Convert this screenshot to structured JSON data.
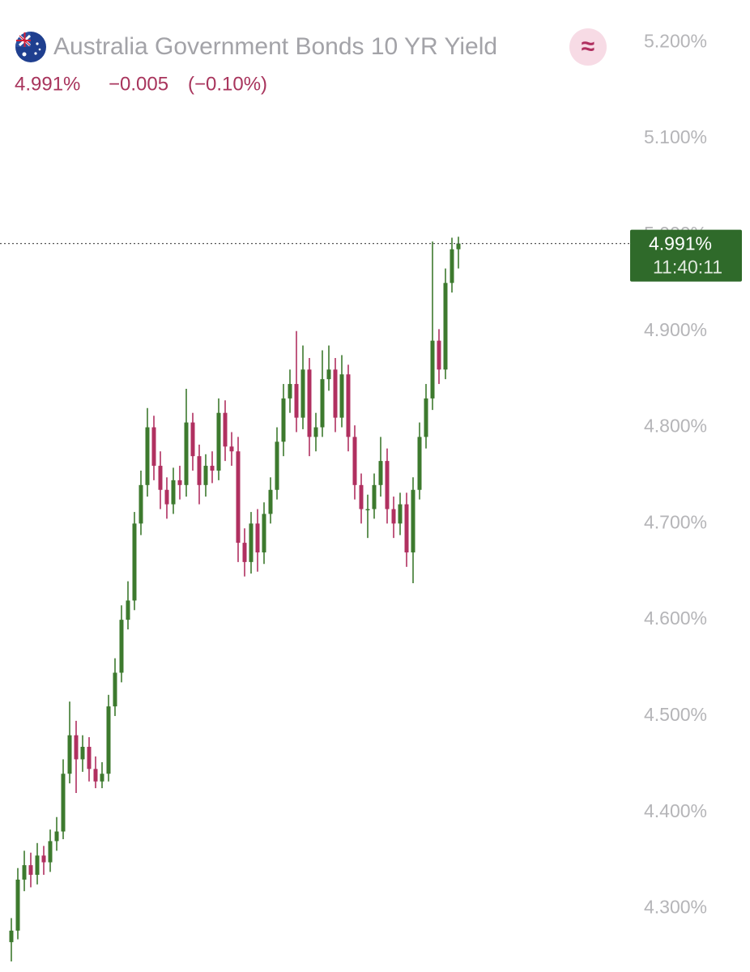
{
  "header": {
    "title": "Australia Government Bonds 10 YR Yield",
    "status_icon": "≈",
    "price": "4.991%",
    "change": "−0.005",
    "change_percent": "(−0.10%)"
  },
  "price_badge": {
    "price": "4.991%",
    "time": "11:40:11"
  },
  "chart_data": {
    "type": "candlestick",
    "up_color": "#3d7a2e",
    "down_color": "#b03060",
    "ylim": [
      4.234,
      5.244
    ],
    "yticks": [
      {
        "value": 4.3,
        "label": "4.300%"
      },
      {
        "value": 4.4,
        "label": "4.400%"
      },
      {
        "value": 4.5,
        "label": "4.500%"
      },
      {
        "value": 4.6,
        "label": "4.600%"
      },
      {
        "value": 4.7,
        "label": "4.700%"
      },
      {
        "value": 4.8,
        "label": "4.800%"
      },
      {
        "value": 4.9,
        "label": "4.900%"
      },
      {
        "value": 5.0,
        "label": "5.000%"
      },
      {
        "value": 5.1,
        "label": "5.100%"
      },
      {
        "value": 5.2,
        "label": "5.200%"
      }
    ],
    "last_price": 4.991,
    "open": [
      4.265,
      4.277,
      4.33,
      4.345,
      4.335,
      4.355,
      4.348,
      4.37,
      4.38,
      4.44,
      4.48,
      4.455,
      4.468,
      4.445,
      4.432,
      4.44,
      4.51,
      4.545,
      4.6,
      4.62,
      4.7,
      4.74,
      4.8,
      4.76,
      4.735,
      4.72,
      4.745,
      4.74,
      4.805,
      4.77,
      4.74,
      4.76,
      4.755,
      4.815,
      4.78,
      4.775,
      4.68,
      4.66,
      4.7,
      4.67,
      4.71,
      4.735,
      4.785,
      4.83,
      4.845,
      4.81,
      4.86,
      4.79,
      4.8,
      4.85,
      4.86,
      4.81,
      4.855,
      4.79,
      4.74,
      4.715,
      4.715,
      4.74,
      4.765,
      4.715,
      4.7,
      4.72,
      4.67,
      4.735,
      4.79,
      4.83,
      4.89,
      4.86,
      4.95,
      4.985
    ],
    "high": [
      4.29,
      4.342,
      4.36,
      4.358,
      4.368,
      4.365,
      4.382,
      4.395,
      4.455,
      4.515,
      4.495,
      4.48,
      4.478,
      4.458,
      4.452,
      4.522,
      4.56,
      4.615,
      4.64,
      4.712,
      4.755,
      4.82,
      4.812,
      4.775,
      4.748,
      4.758,
      4.76,
      4.84,
      4.815,
      4.782,
      4.772,
      4.775,
      4.83,
      4.828,
      4.795,
      4.79,
      4.695,
      4.712,
      4.715,
      4.722,
      4.748,
      4.8,
      4.845,
      4.86,
      4.9,
      4.885,
      4.872,
      4.815,
      4.88,
      4.885,
      4.872,
      4.875,
      4.865,
      4.802,
      4.752,
      4.73,
      4.752,
      4.79,
      4.778,
      4.728,
      4.732,
      4.732,
      4.748,
      4.805,
      4.845,
      4.993,
      4.902,
      4.965,
      4.997,
      4.998
    ],
    "low": [
      4.245,
      4.268,
      4.318,
      4.322,
      4.325,
      4.335,
      4.338,
      4.36,
      4.372,
      4.43,
      4.42,
      4.442,
      4.432,
      4.425,
      4.425,
      4.432,
      4.5,
      4.535,
      4.59,
      4.61,
      4.688,
      4.728,
      4.745,
      4.715,
      4.705,
      4.71,
      4.725,
      4.728,
      4.755,
      4.72,
      4.728,
      4.742,
      4.745,
      4.765,
      4.76,
      4.66,
      4.645,
      4.648,
      4.65,
      4.658,
      4.7,
      4.725,
      4.77,
      4.815,
      4.795,
      4.798,
      4.77,
      4.775,
      4.79,
      4.838,
      4.795,
      4.8,
      4.775,
      4.725,
      4.7,
      4.685,
      4.705,
      4.728,
      4.7,
      4.685,
      4.688,
      4.655,
      4.638,
      4.725,
      4.778,
      4.818,
      4.845,
      4.85,
      4.94,
      4.965
    ],
    "close": [
      4.277,
      4.33,
      4.345,
      4.335,
      4.355,
      4.348,
      4.37,
      4.38,
      4.44,
      4.48,
      4.455,
      4.468,
      4.445,
      4.432,
      4.44,
      4.51,
      4.545,
      4.6,
      4.62,
      4.7,
      4.74,
      4.8,
      4.76,
      4.735,
      4.72,
      4.745,
      4.74,
      4.805,
      4.77,
      4.74,
      4.76,
      4.755,
      4.815,
      4.78,
      4.775,
      4.68,
      4.66,
      4.7,
      4.67,
      4.71,
      4.735,
      4.785,
      4.83,
      4.845,
      4.81,
      4.86,
      4.79,
      4.8,
      4.85,
      4.86,
      4.81,
      4.855,
      4.79,
      4.74,
      4.715,
      4.715,
      4.74,
      4.765,
      4.715,
      4.7,
      4.72,
      4.67,
      4.735,
      4.79,
      4.83,
      4.89,
      4.86,
      4.95,
      4.985,
      4.991
    ]
  }
}
